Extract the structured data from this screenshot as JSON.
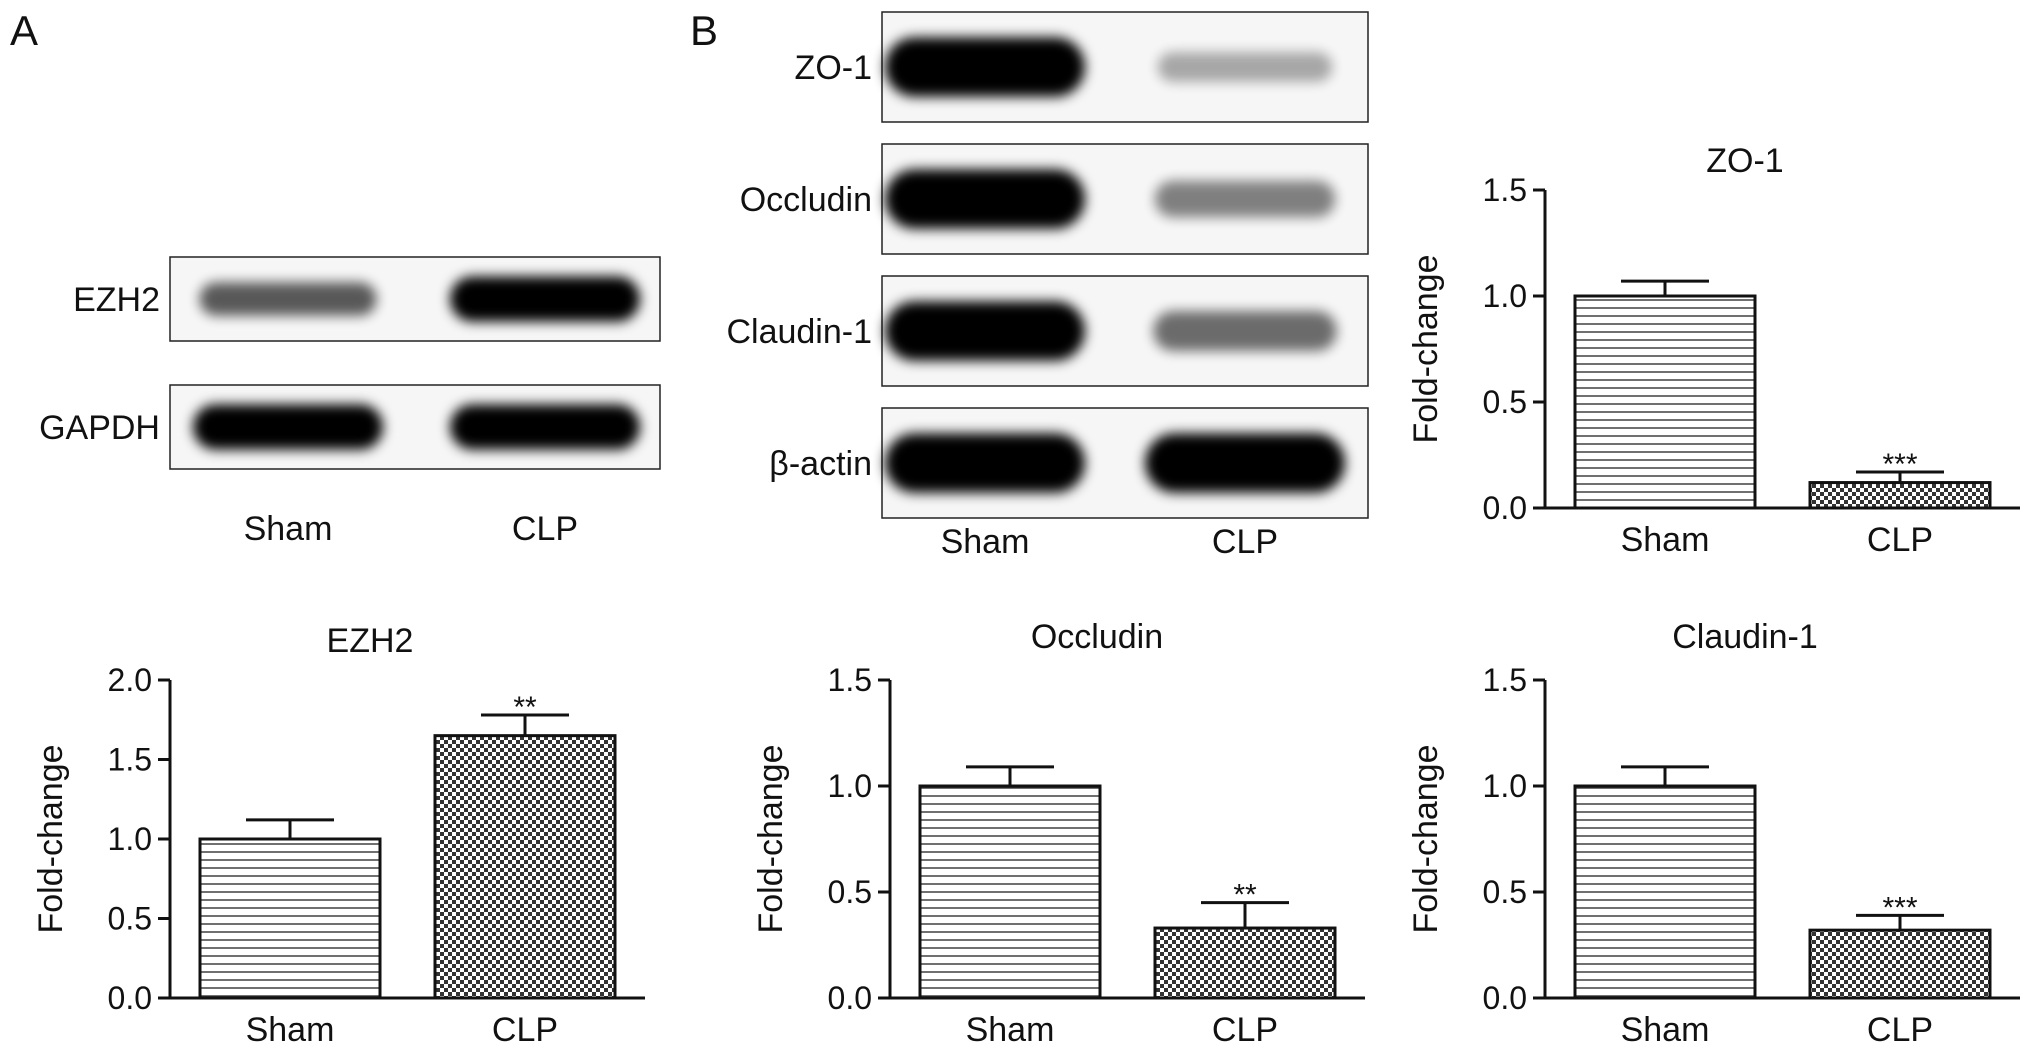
{
  "panels": {
    "a": "A",
    "b": "B"
  },
  "blot_a": {
    "rows": [
      {
        "label": "EZH2",
        "sham_intensity": 0.55,
        "clp_intensity": 1.0
      },
      {
        "label": "GAPDH",
        "sham_intensity": 1.0,
        "clp_intensity": 1.0
      }
    ],
    "lanes": [
      "Sham",
      "CLP"
    ]
  },
  "blot_b": {
    "rows": [
      {
        "label": "ZO-1",
        "sham_intensity": 1.0,
        "clp_intensity": 0.15
      },
      {
        "label": "Occludin",
        "sham_intensity": 1.0,
        "clp_intensity": 0.35
      },
      {
        "label": "Claudin-1",
        "sham_intensity": 1.0,
        "clp_intensity": 0.45
      },
      {
        "label": "β-actin",
        "sham_intensity": 1.0,
        "clp_intensity": 1.0
      }
    ],
    "lanes": [
      "Sham",
      "CLP"
    ]
  },
  "chart_data": [
    {
      "id": "ezh2",
      "type": "bar",
      "title": "EZH2",
      "ylabel": "Fold-change",
      "categories": [
        "Sham",
        "CLP"
      ],
      "values": [
        1.0,
        1.65
      ],
      "errors": [
        0.12,
        0.13
      ],
      "significance": [
        "",
        "**"
      ],
      "ylim": [
        0,
        2.0
      ],
      "yticks": [
        "0.0",
        "0.5",
        "1.0",
        "1.5",
        "2.0"
      ],
      "patterns": [
        "horizontal-lines",
        "checkered"
      ]
    },
    {
      "id": "zo1",
      "type": "bar",
      "title": "ZO-1",
      "ylabel": "Fold-change",
      "categories": [
        "Sham",
        "CLP"
      ],
      "values": [
        1.0,
        0.12
      ],
      "errors": [
        0.07,
        0.05
      ],
      "significance": [
        "",
        "***"
      ],
      "ylim": [
        0,
        1.5
      ],
      "yticks": [
        "0.0",
        "0.5",
        "1.0",
        "1.5"
      ],
      "patterns": [
        "horizontal-lines",
        "checkered"
      ]
    },
    {
      "id": "occludin",
      "type": "bar",
      "title": "Occludin",
      "ylabel": "Fold-change",
      "categories": [
        "Sham",
        "CLP"
      ],
      "values": [
        1.0,
        0.33
      ],
      "errors": [
        0.09,
        0.12
      ],
      "significance": [
        "",
        "**"
      ],
      "ylim": [
        0,
        1.5
      ],
      "yticks": [
        "0.0",
        "0.5",
        "1.0",
        "1.5"
      ],
      "patterns": [
        "horizontal-lines",
        "checkered"
      ]
    },
    {
      "id": "claudin1",
      "type": "bar",
      "title": "Claudin-1",
      "ylabel": "Fold-change",
      "categories": [
        "Sham",
        "CLP"
      ],
      "values": [
        1.0,
        0.32
      ],
      "errors": [
        0.09,
        0.07
      ],
      "significance": [
        "",
        "***"
      ],
      "ylim": [
        0,
        1.5
      ],
      "yticks": [
        "0.0",
        "0.5",
        "1.0",
        "1.5"
      ],
      "patterns": [
        "horizontal-lines",
        "checkered"
      ]
    }
  ]
}
